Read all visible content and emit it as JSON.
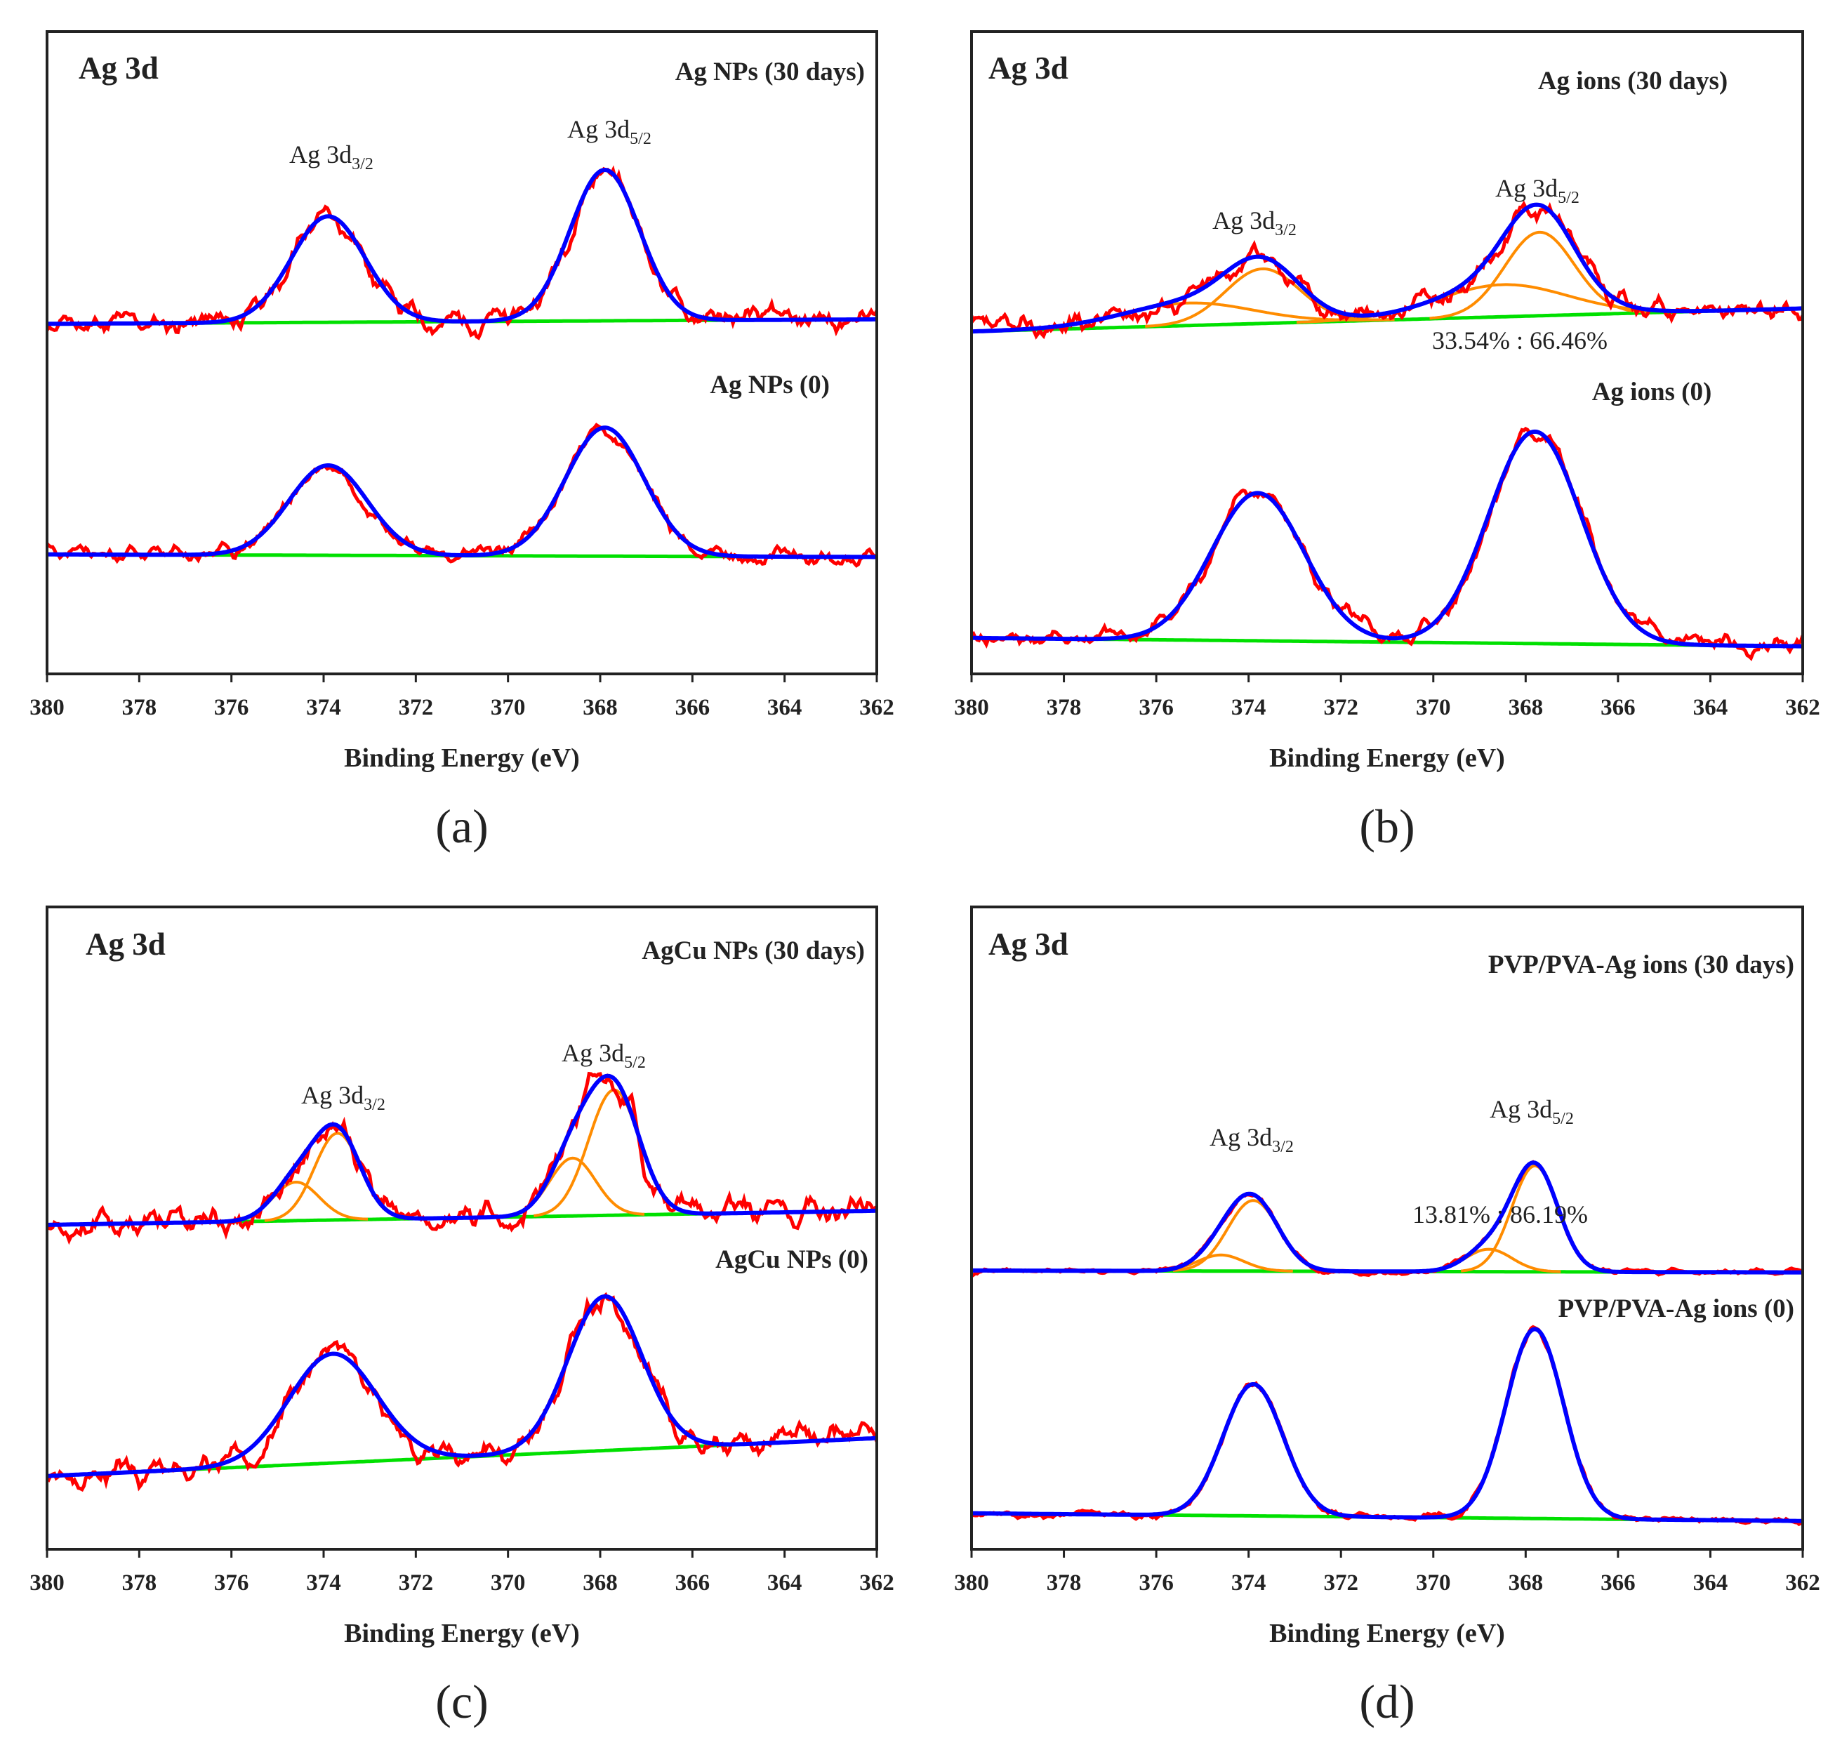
{
  "colors": {
    "raw": "#ff0000",
    "fit": "#0000ff",
    "component": "#ff8c00",
    "baseline": "#00e000",
    "axis": "#222222"
  },
  "chart_data": [
    {
      "type": "line",
      "panel_label": "(a)",
      "title": "Ag 3d",
      "xlabel": "Binding Energy (eV)",
      "ylabel": "",
      "xlim": [
        380,
        362
      ],
      "ylim": [
        0,
        100
      ],
      "xticks": [
        380,
        378,
        376,
        374,
        372,
        370,
        368,
        366,
        364,
        362
      ],
      "peak_labels": [
        {
          "text": "Ag 3d",
          "sub": "3/2"
        },
        {
          "text": "Ag 3d",
          "sub": "5/2"
        }
      ],
      "ratio_text": null,
      "spectra": [
        {
          "name": "Ag NPs (30 days)",
          "baseline": [
            54.5,
            55.2
          ],
          "noise": 2.6,
          "seed": 11,
          "components": [
            {
              "center": 373.9,
              "amp": 16.5,
              "sigma": 0.8
            },
            {
              "center": 367.9,
              "amp": 23.5,
              "sigma": 0.75
            }
          ],
          "show_components": false
        },
        {
          "name": "Ag NPs (0)",
          "baseline": [
            18.6,
            18.2
          ],
          "noise": 2.2,
          "seed": 23,
          "components": [
            {
              "center": 373.9,
              "amp": 14,
              "sigma": 0.85
            },
            {
              "center": 367.9,
              "amp": 20,
              "sigma": 0.85
            }
          ],
          "show_components": false
        }
      ]
    },
    {
      "type": "line",
      "panel_label": "(b)",
      "title": "Ag 3d",
      "xlabel": "Binding Energy (eV)",
      "ylabel": "",
      "xlim": [
        380,
        362
      ],
      "ylim": [
        0,
        100
      ],
      "xticks": [
        380,
        378,
        376,
        374,
        372,
        370,
        368,
        366,
        364,
        362
      ],
      "peak_labels": [
        {
          "text": "Ag 3d",
          "sub": "3/2"
        },
        {
          "text": "Ag 3d",
          "sub": "5/2"
        }
      ],
      "ratio_text": "33.54% : 66.46%",
      "spectra": [
        {
          "name": "Ag ions (30 days)",
          "baseline": [
            53.3,
            56.9
          ],
          "noise": 2.4,
          "seed": 37,
          "components": [
            {
              "center": 375.3,
              "amp": 3.5,
              "sigma": 1.4
            },
            {
              "center": 373.7,
              "amp": 8.5,
              "sigma": 0.8
            },
            {
              "center": 368.5,
              "amp": 5,
              "sigma": 1.4
            },
            {
              "center": 367.7,
              "amp": 13,
              "sigma": 0.75
            }
          ],
          "show_components": true
        },
        {
          "name": "Ag ions (0)",
          "baseline": [
            5.6,
            4.3
          ],
          "noise": 2.4,
          "seed": 41,
          "components": [
            {
              "center": 373.8,
              "amp": 23,
              "sigma": 1.0
            },
            {
              "center": 367.8,
              "amp": 33,
              "sigma": 1.0
            }
          ],
          "show_components": false
        }
      ]
    },
    {
      "type": "line",
      "panel_label": "(c)",
      "title": "Ag 3d",
      "xlabel": "Binding Energy (eV)",
      "ylabel": "",
      "xlim": [
        380,
        362
      ],
      "ylim": [
        0,
        100
      ],
      "xticks": [
        380,
        378,
        376,
        374,
        372,
        370,
        368,
        366,
        364,
        362
      ],
      "peak_labels": [
        {
          "text": "Ag 3d",
          "sub": "3/2"
        },
        {
          "text": "Ag 3d",
          "sub": "5/2"
        }
      ],
      "ratio_text": null,
      "spectra": [
        {
          "name": "AgCu NPs (30 days)",
          "baseline": [
            50.5,
            52.7
          ],
          "noise": 3.6,
          "seed": 53,
          "components": [
            {
              "center": 374.6,
              "amp": 6,
              "sigma": 0.5
            },
            {
              "center": 373.7,
              "amp": 13.5,
              "sigma": 0.5
            },
            {
              "center": 368.6,
              "amp": 9,
              "sigma": 0.5
            },
            {
              "center": 367.7,
              "amp": 19.5,
              "sigma": 0.55
            }
          ],
          "show_components": true
        },
        {
          "name": "AgCu NPs (0)",
          "baseline": [
            11.4,
            17.3
          ],
          "noise": 3.6,
          "seed": 67,
          "components": [
            {
              "center": 373.8,
              "amp": 17,
              "sigma": 0.95
            },
            {
              "center": 367.9,
              "amp": 24,
              "sigma": 0.8
            }
          ],
          "show_components": false
        }
      ]
    },
    {
      "type": "line",
      "panel_label": "(d)",
      "title": "Ag 3d",
      "xlabel": "Binding Energy (eV)",
      "ylabel": "",
      "xlim": [
        380,
        362
      ],
      "ylim": [
        0,
        100
      ],
      "xticks": [
        380,
        378,
        376,
        374,
        372,
        370,
        368,
        366,
        364,
        362
      ],
      "peak_labels": [
        {
          "text": "Ag 3d",
          "sub": "3/2"
        },
        {
          "text": "Ag 3d",
          "sub": "5/2"
        }
      ],
      "ratio_text": "13.81% : 86.19%",
      "spectra": [
        {
          "name": "PVP/PVA-Ag ions (30 days)",
          "baseline": [
            43.4,
            43.1
          ],
          "noise": 0.9,
          "seed": 71,
          "components": [
            {
              "center": 374.6,
              "amp": 2.5,
              "sigma": 0.5
            },
            {
              "center": 373.9,
              "amp": 11,
              "sigma": 0.55
            },
            {
              "center": 368.8,
              "amp": 3.5,
              "sigma": 0.5
            },
            {
              "center": 367.8,
              "amp": 16.5,
              "sigma": 0.5
            }
          ],
          "show_components": true
        },
        {
          "name": "PVP/PVA-Ag ions (0)",
          "baseline": [
            5.6,
            4.4
          ],
          "noise": 0.7,
          "seed": 83,
          "components": [
            {
              "center": 373.9,
              "amp": 20.5,
              "sigma": 0.65
            },
            {
              "center": 367.8,
              "amp": 29.5,
              "sigma": 0.62
            }
          ],
          "show_components": false
        }
      ]
    }
  ]
}
